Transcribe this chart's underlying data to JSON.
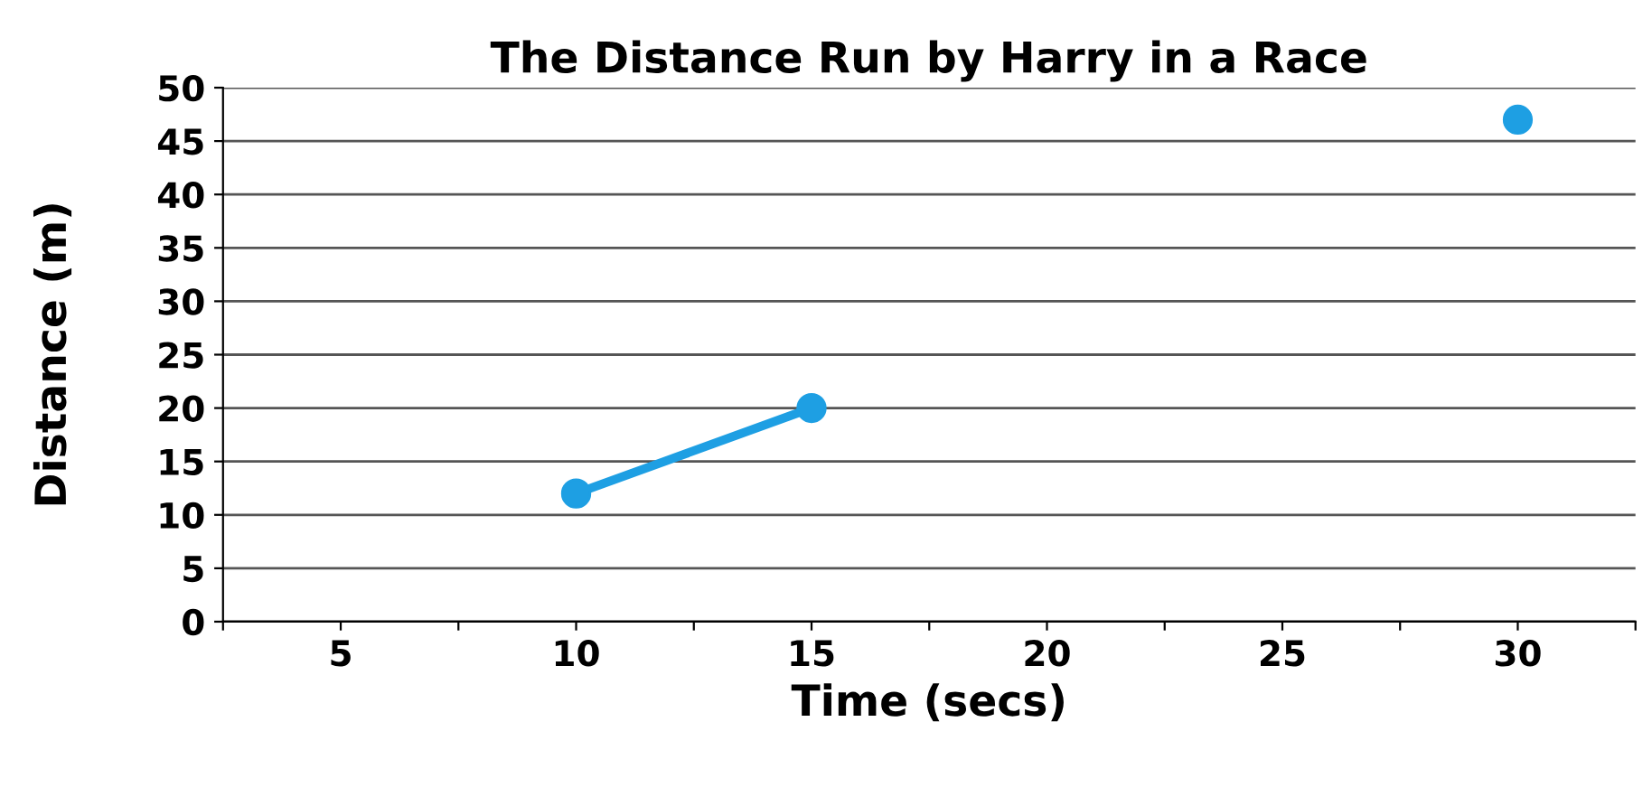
{
  "chart_data": {
    "type": "line",
    "title": "The Distance Run by Harry in a Race",
    "xlabel": "Time (secs)",
    "ylabel": "Distance (m)",
    "series": [
      {
        "x": [
          10,
          15
        ],
        "values": [
          12,
          20
        ],
        "color": "#1e9fe3"
      },
      {
        "type": "scatter",
        "x": [
          30
        ],
        "values": [
          47
        ],
        "color": "#1e9fe3"
      }
    ],
    "xlim": [
      2.5,
      32.5
    ],
    "xticks": [
      {
        "value": 2.5,
        "label": null
      },
      5,
      {
        "value": 7.5,
        "label": null
      },
      10,
      {
        "value": 12.5,
        "label": null
      },
      15,
      {
        "value": 17.5,
        "label": null
      },
      20,
      {
        "value": 22.5,
        "label": null
      },
      25,
      {
        "value": 27.5,
        "label": null
      },
      30,
      {
        "value": 32.5,
        "label": null
      }
    ],
    "ylim": [
      0,
      50
    ],
    "yticks": [
      0,
      5,
      10,
      15,
      20,
      25,
      30,
      35,
      40,
      45,
      50
    ],
    "grid": "y",
    "marker": "circle",
    "line_style": "solid"
  }
}
